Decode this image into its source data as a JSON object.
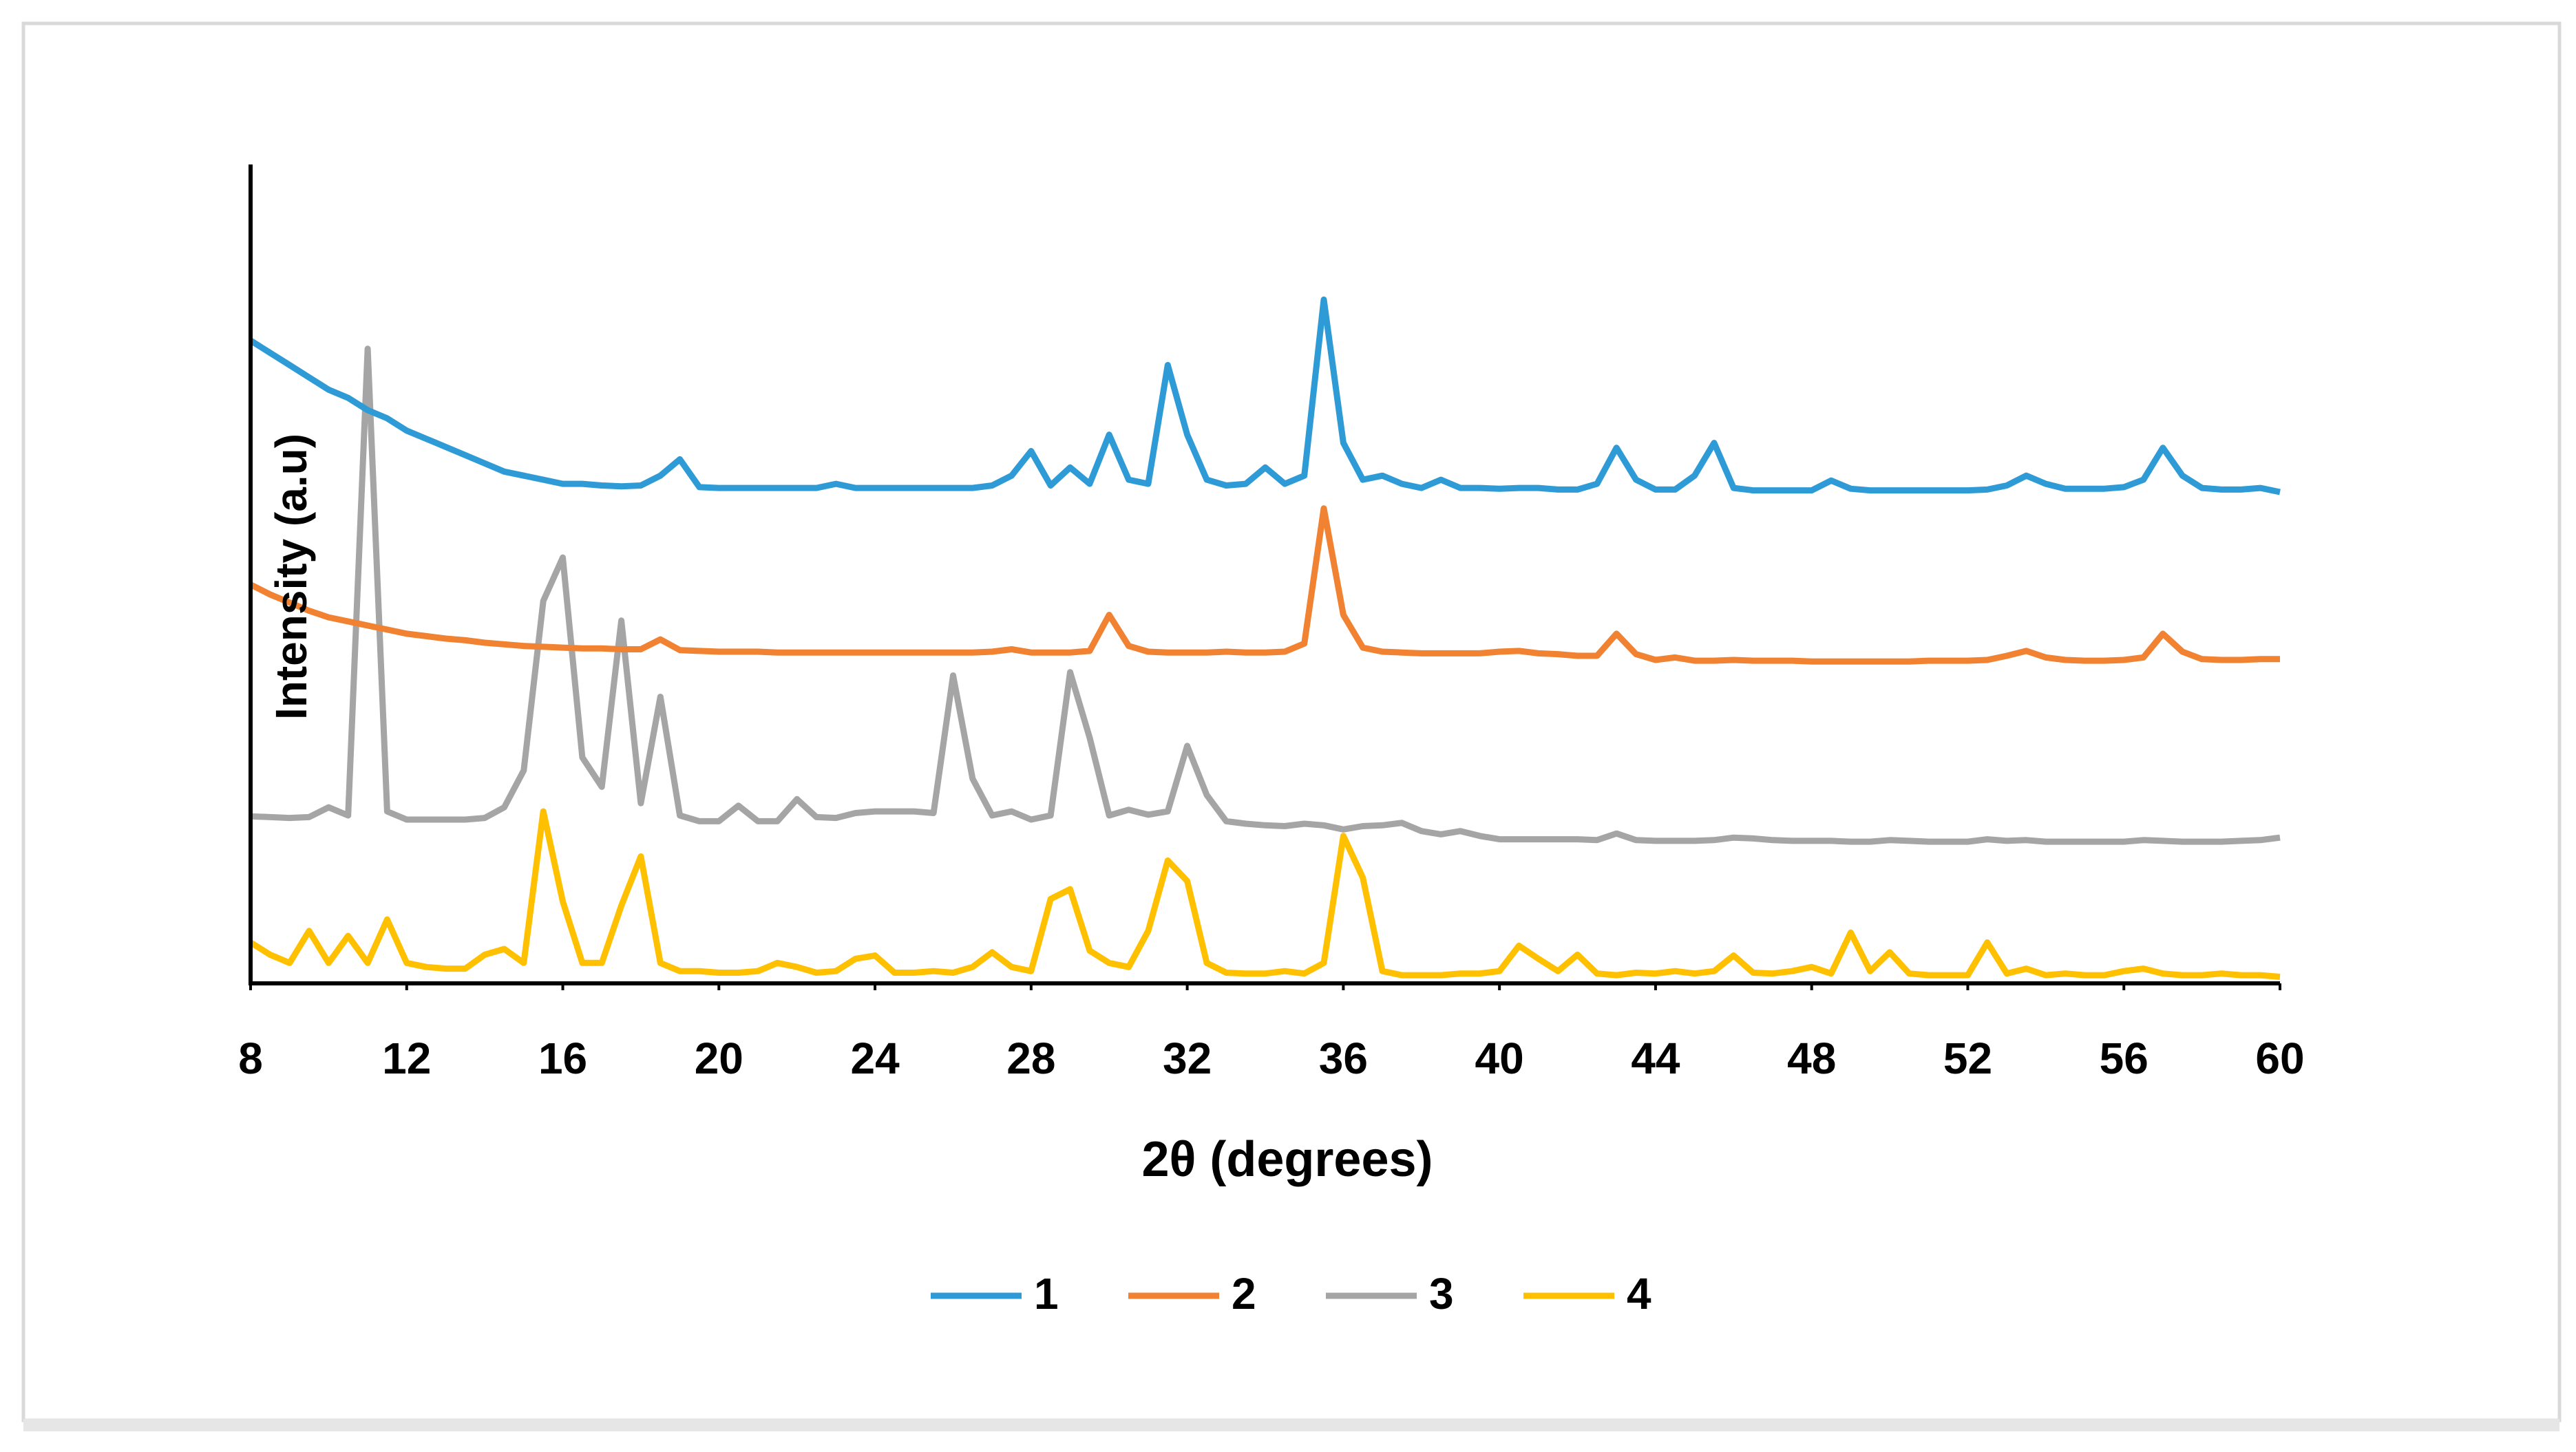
{
  "chart_data": {
    "type": "line",
    "xlabel": "2θ (degrees)",
    "ylabel": "Intensity (a.u)",
    "xlim": [
      8,
      60
    ],
    "xticks": [
      8,
      12,
      16,
      20,
      24,
      28,
      32,
      36,
      40,
      44,
      48,
      52,
      56,
      60
    ],
    "ylim": [
      0,
      100
    ],
    "grid": false,
    "legend": "bottom",
    "x": [
      8,
      8.5,
      9,
      9.5,
      10,
      10.5,
      11,
      11.5,
      12,
      12.5,
      13,
      13.5,
      14,
      14.5,
      15,
      15.5,
      16,
      16.5,
      17,
      17.5,
      18,
      18.5,
      19,
      19.5,
      20,
      20.5,
      21,
      21.5,
      22,
      22.5,
      23,
      23.5,
      24,
      24.5,
      25,
      25.5,
      26,
      26.5,
      27,
      27.5,
      28,
      28.5,
      29,
      29.5,
      30,
      30.5,
      31,
      31.5,
      32,
      32.5,
      33,
      33.5,
      34,
      34.5,
      35,
      35.5,
      36,
      36.5,
      37,
      37.5,
      38,
      38.5,
      39,
      39.5,
      40,
      40.5,
      41,
      41.5,
      42,
      42.5,
      43,
      43.5,
      44,
      44.5,
      45,
      45.5,
      46,
      46.5,
      47,
      47.5,
      48,
      48.5,
      49,
      49.5,
      50,
      50.5,
      51,
      51.5,
      52,
      52.5,
      53,
      53.5,
      54,
      54.5,
      55,
      55.5,
      56,
      56.5,
      57,
      57.5,
      58,
      58.5,
      59,
      59.5,
      60
    ],
    "series": [
      {
        "name": "1",
        "color": "#2e9bd6",
        "values": [
          78.5,
          77,
          75.5,
          74,
          72.5,
          71.5,
          70,
          69,
          67.5,
          66.5,
          65.5,
          64.5,
          63.5,
          62.5,
          62,
          61.5,
          61,
          61,
          60.8,
          60.7,
          60.8,
          62,
          64,
          60.6,
          60.5,
          60.5,
          60.5,
          60.5,
          60.5,
          60.5,
          61,
          60.5,
          60.5,
          60.5,
          60.5,
          60.5,
          60.5,
          60.5,
          60.8,
          62,
          65,
          60.8,
          63,
          61,
          67,
          61.5,
          61,
          75.5,
          67,
          61.5,
          60.8,
          61,
          63,
          61,
          62,
          83.5,
          66,
          61.5,
          62,
          61,
          60.5,
          61.5,
          60.5,
          60.5,
          60.4,
          60.5,
          60.5,
          60.3,
          60.3,
          61,
          65.4,
          61.5,
          60.3,
          60.3,
          62,
          66,
          60.5,
          60.2,
          60.2,
          60.2,
          60.2,
          61.4,
          60.4,
          60.2,
          60.2,
          60.2,
          60.2,
          60.2,
          60.2,
          60.3,
          60.8,
          62,
          61,
          60.4,
          60.4,
          60.4,
          60.6,
          61.5,
          65.4,
          62,
          60.5,
          60.3,
          60.3,
          60.5,
          60
        ]
      },
      {
        "name": "2",
        "color": "#f08232",
        "values": [
          48.7,
          47.5,
          46.5,
          45.5,
          44.7,
          44.2,
          43.7,
          43.2,
          42.7,
          42.4,
          42.1,
          41.9,
          41.6,
          41.4,
          41.2,
          41.1,
          41,
          40.9,
          40.9,
          40.8,
          40.8,
          42,
          40.7,
          40.6,
          40.5,
          40.5,
          40.5,
          40.4,
          40.4,
          40.4,
          40.4,
          40.4,
          40.4,
          40.4,
          40.4,
          40.4,
          40.4,
          40.4,
          40.5,
          40.8,
          40.4,
          40.4,
          40.4,
          40.6,
          45,
          41.2,
          40.5,
          40.4,
          40.4,
          40.4,
          40.5,
          40.4,
          40.4,
          40.5,
          41.5,
          58,
          45,
          41,
          40.5,
          40.4,
          40.3,
          40.3,
          40.3,
          40.3,
          40.5,
          40.6,
          40.3,
          40.2,
          40,
          40,
          42.7,
          40.2,
          39.5,
          39.8,
          39.4,
          39.4,
          39.5,
          39.4,
          39.4,
          39.4,
          39.3,
          39.3,
          39.3,
          39.3,
          39.3,
          39.3,
          39.4,
          39.4,
          39.4,
          39.5,
          40,
          40.6,
          39.8,
          39.5,
          39.4,
          39.4,
          39.5,
          39.8,
          42.7,
          40.5,
          39.6,
          39.5,
          39.5,
          39.6,
          39.6
        ]
      },
      {
        "name": "3",
        "color": "#a5a5a5",
        "values": [
          20.4,
          20.3,
          20.2,
          20.3,
          21.5,
          20.5,
          77.5,
          21,
          20,
          20,
          20,
          20,
          20.2,
          21.5,
          26,
          46.7,
          52,
          27.6,
          24,
          44.3,
          22,
          35,
          20.5,
          19.8,
          19.8,
          21.7,
          19.8,
          19.8,
          22.5,
          20.3,
          20.2,
          20.8,
          21,
          21,
          21,
          20.8,
          37.6,
          25,
          20.5,
          21,
          20,
          20.5,
          38,
          30,
          20.5,
          21.2,
          20.6,
          21,
          29,
          23,
          19.8,
          19.5,
          19.3,
          19.2,
          19.5,
          19.3,
          18.8,
          19.2,
          19.3,
          19.6,
          18.6,
          18.2,
          18.6,
          18,
          17.6,
          17.6,
          17.6,
          17.6,
          17.6,
          17.5,
          18.3,
          17.5,
          17.4,
          17.4,
          17.4,
          17.5,
          17.8,
          17.7,
          17.5,
          17.4,
          17.4,
          17.4,
          17.3,
          17.3,
          17.5,
          17.4,
          17.3,
          17.3,
          17.3,
          17.6,
          17.4,
          17.5,
          17.3,
          17.3,
          17.3,
          17.3,
          17.3,
          17.5,
          17.4,
          17.3,
          17.3,
          17.3,
          17.4,
          17.5,
          17.8
        ]
      },
      {
        "name": "4",
        "color": "#ffc000",
        "values": [
          5,
          3.5,
          2.5,
          6.4,
          2.5,
          5.8,
          2.5,
          7.8,
          2.5,
          2,
          1.8,
          1.8,
          3.5,
          4.2,
          2.5,
          21,
          10,
          2.5,
          2.5,
          9.5,
          15.5,
          2.5,
          1.5,
          1.5,
          1.3,
          1.3,
          1.5,
          2.5,
          2,
          1.3,
          1.5,
          3,
          3.4,
          1.3,
          1.3,
          1.5,
          1.3,
          2,
          3.8,
          2,
          1.5,
          10.3,
          11.5,
          4,
          2.5,
          2,
          6.4,
          15,
          12.5,
          2.5,
          1.3,
          1.2,
          1.2,
          1.5,
          1.2,
          2.5,
          18,
          12.9,
          1.5,
          1,
          1,
          1,
          1.2,
          1.2,
          1.5,
          4.6,
          3,
          1.5,
          3.5,
          1.2,
          1,
          1.3,
          1.2,
          1.5,
          1.2,
          1.5,
          3.4,
          1.3,
          1.2,
          1.5,
          2,
          1.2,
          6.2,
          1.5,
          3.8,
          1.2,
          1,
          1,
          1,
          5,
          1.2,
          1.8,
          1,
          1.2,
          1,
          1,
          1.5,
          1.8,
          1.2,
          1,
          1,
          1.2,
          1,
          1,
          0.8
        ]
      }
    ]
  }
}
